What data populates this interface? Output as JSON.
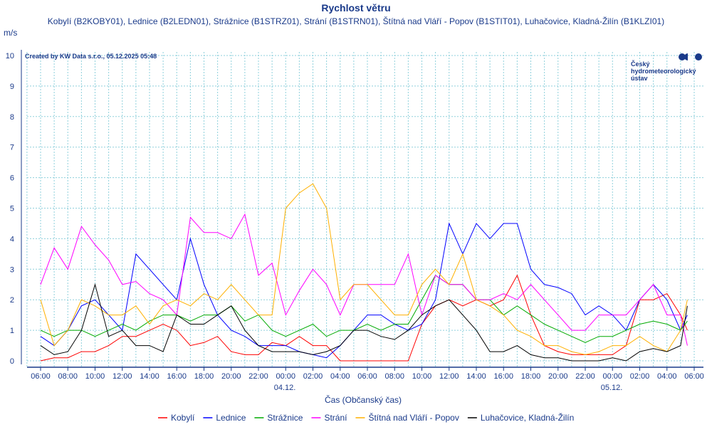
{
  "chart_data": {
    "type": "line",
    "title": "Rychlost větru",
    "subtitle": "Kobylí (B2KOBY01), Lednice (B2LEDN01), Strážnice (B1STRZ01), Strání (B1STRN01), Štítná nad Vláří - Popov (B1STIT01), Luhačovice, Kladná-Žilín (B1KLZI01)",
    "ylabel": "m/s",
    "xlabel": "Čas (Občanský čas)",
    "credit": "Created by KW Data s.r.o., 05.12.2025 05:48",
    "logo_text": [
      "Český",
      "hydrometeorologický",
      "ústav"
    ],
    "ylim": [
      0,
      10
    ],
    "yticks": [
      "0",
      "1",
      "2",
      "3",
      "4",
      "5",
      "6",
      "7",
      "8",
      "9",
      "10"
    ],
    "xlim_hours": [
      -1,
      49
    ],
    "x_unit": "hours since 03.12. 06:00",
    "xticks": [
      "06:00",
      "08:00",
      "10:00",
      "12:00",
      "14:00",
      "16:00",
      "18:00",
      "20:00",
      "22:00",
      "00:00",
      "02:00",
      "04:00",
      "06:00",
      "08:00",
      "10:00",
      "12:00",
      "14:00",
      "16:00",
      "18:00",
      "20:00",
      "22:00",
      "00:00",
      "02:00",
      "04:00",
      "06:00"
    ],
    "date_labels": [
      {
        "hour": 18,
        "label": "04.12."
      },
      {
        "hour": 42,
        "label": "05.12."
      }
    ],
    "grid": true,
    "legend_position": "bottom",
    "x": [
      0,
      1,
      2,
      3,
      4,
      5,
      6,
      7,
      8,
      9,
      10,
      11,
      12,
      13,
      14,
      15,
      16,
      17,
      18,
      19,
      20,
      21,
      22,
      23,
      24,
      25,
      26,
      27,
      28,
      29,
      30,
      31,
      32,
      33,
      34,
      35,
      36,
      37,
      38,
      39,
      40,
      41,
      42,
      43,
      44,
      45,
      46,
      47,
      47.5
    ],
    "series": [
      {
        "name": "Kobylí",
        "color": "#ff0000",
        "values": [
          0,
          0.1,
          0.1,
          0.3,
          0.3,
          0.5,
          0.8,
          0.8,
          1,
          1.2,
          1,
          0.5,
          0.6,
          0.8,
          0.3,
          0.2,
          0.2,
          0.6,
          0.5,
          0.8,
          0.5,
          0.5,
          0,
          0,
          0,
          0,
          0,
          0,
          1.2,
          1.8,
          2,
          1.8,
          2,
          1.8,
          2,
          2.8,
          1.5,
          0.5,
          0.3,
          0.2,
          0.2,
          0.2,
          0.2,
          0.5,
          2,
          2,
          2.2,
          1.5,
          1
        ]
      },
      {
        "name": "Lednice",
        "color": "#0000ff",
        "values": [
          0.8,
          0.5,
          1,
          1.8,
          2,
          1.5,
          1,
          3.5,
          3,
          2.5,
          2,
          4,
          2.5,
          1.5,
          1,
          0.8,
          0.5,
          0.5,
          0.5,
          0.3,
          0.2,
          0.1,
          0.5,
          1,
          1.5,
          1.5,
          1.2,
          1,
          1.2,
          2,
          4.5,
          3.5,
          4.5,
          4,
          4.5,
          4.5,
          3,
          2.5,
          2.4,
          2.2,
          1.5,
          1.8,
          1.5,
          1,
          2,
          2.5,
          2,
          1,
          1.5
        ]
      },
      {
        "name": "Strážnice",
        "color": "#00aa00",
        "values": [
          1,
          0.8,
          1,
          1,
          0.8,
          1,
          1.2,
          1,
          1.3,
          1.5,
          1.5,
          1.3,
          1.5,
          1.5,
          1.8,
          1.3,
          1.5,
          1,
          0.8,
          1,
          1.2,
          0.8,
          1,
          1,
          1.2,
          1,
          1.2,
          1.2,
          2,
          2.8,
          2.5,
          2.5,
          2,
          2,
          1.5,
          1.8,
          1.5,
          1.2,
          1,
          0.8,
          0.6,
          0.8,
          0.8,
          1,
          1.2,
          1.3,
          1.2,
          1,
          1.3
        ]
      },
      {
        "name": "Strání",
        "color": "#ff00ff",
        "values": [
          2.5,
          3.7,
          3,
          4.4,
          3.8,
          3.3,
          2.5,
          2.6,
          2.2,
          2,
          1.5,
          4.7,
          4.2,
          4.2,
          4,
          4.8,
          2.8,
          3.2,
          1.5,
          2.3,
          3,
          2.5,
          1.5,
          2.5,
          2.5,
          2.5,
          2.5,
          3.5,
          1.5,
          2.8,
          2.5,
          2.5,
          2,
          2,
          2.2,
          2,
          2.5,
          2,
          1.5,
          1,
          1,
          1.5,
          1.5,
          1.5,
          2,
          2.5,
          1.5,
          1.5,
          0.5
        ]
      },
      {
        "name": "Štítná nad Vláří - Popov",
        "color": "#ffb000",
        "values": [
          2,
          0.5,
          1,
          2,
          1.8,
          1.5,
          1.5,
          1.8,
          1.2,
          1.8,
          2,
          1.8,
          2.2,
          2,
          2.5,
          2,
          1.5,
          1.5,
          5,
          5.5,
          5.8,
          5,
          2,
          2.5,
          2.5,
          2,
          1.5,
          1.5,
          2.5,
          3,
          2.5,
          3.5,
          2,
          1.8,
          1.5,
          1,
          0.8,
          0.5,
          0.5,
          0.3,
          0.2,
          0.3,
          0.5,
          0.5,
          0.8,
          0.5,
          0.3,
          1,
          2
        ]
      },
      {
        "name": "Luhačovice, Kladná-Žilín",
        "color": "#000000",
        "values": [
          0.5,
          0.2,
          0.3,
          1,
          2.5,
          0.8,
          1,
          0.5,
          0.5,
          0.3,
          1.5,
          1.2,
          1.2,
          1.5,
          1.8,
          1,
          0.5,
          0.3,
          0.3,
          0.3,
          0.2,
          0.3,
          0.5,
          1,
          1,
          0.8,
          0.7,
          1,
          1.5,
          1.8,
          2,
          1.5,
          1,
          0.3,
          0.3,
          0.5,
          0.2,
          0.1,
          0.1,
          0,
          0,
          0,
          0.1,
          0,
          0.3,
          0.4,
          0.3,
          0.5,
          1.8
        ]
      }
    ]
  }
}
